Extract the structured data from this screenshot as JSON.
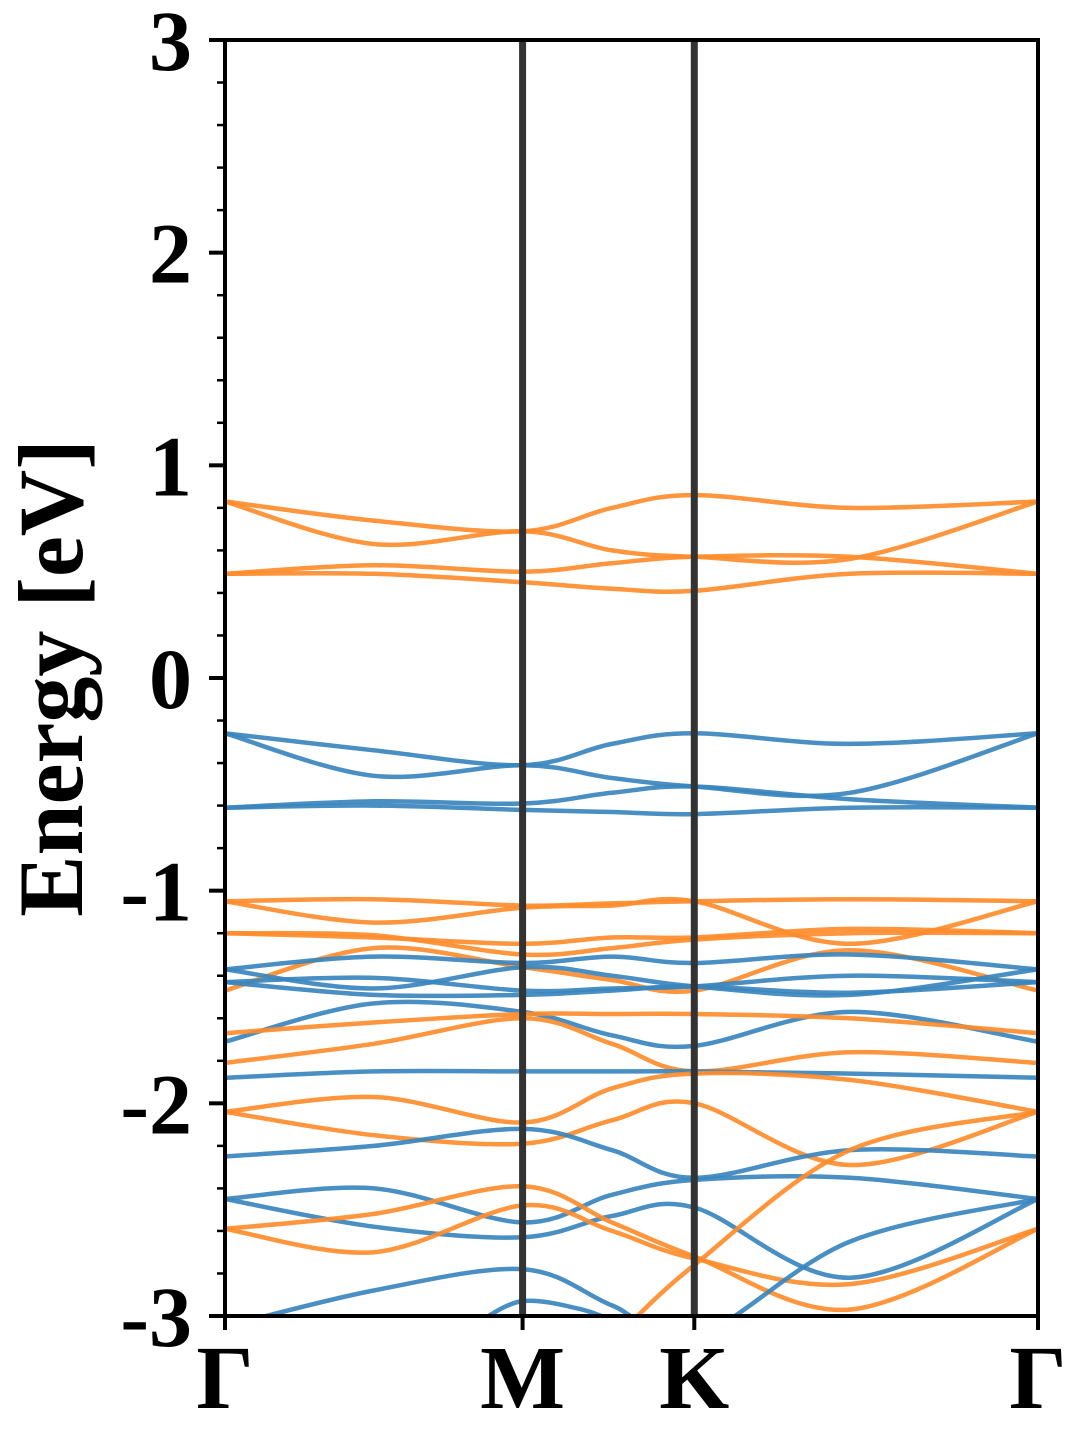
{
  "chart_data": {
    "type": "line",
    "ylabel": "Energy [eV]",
    "xlabel": "",
    "ylim": [
      -3,
      3
    ],
    "y_ticks": [
      "3",
      "2",
      "1",
      "0",
      "-1",
      "-2",
      "-3"
    ],
    "y_tick_values": [
      3,
      2,
      1,
      0,
      -1,
      -2,
      -3
    ],
    "y_minor_step": 0.2,
    "kpath": {
      "labels": [
        "Γ",
        "M",
        "K",
        "Γ"
      ],
      "positions": [
        0,
        1,
        1.577,
        2.732
      ]
    },
    "grid": false,
    "legend": "none",
    "colors": {
      "blue": "#3a86be",
      "orange": "#ff8c2b",
      "frame": "#000000",
      "divider": "#333333"
    },
    "series": [
      {
        "color": "orange",
        "x": [
          0,
          0.5,
          1,
          1.3,
          1.577,
          2.1,
          2.732
        ],
        "y": [
          0.83,
          0.74,
          0.69,
          0.8,
          0.86,
          0.8,
          0.83
        ]
      },
      {
        "color": "orange",
        "x": [
          0,
          0.5,
          1,
          1.3,
          1.577,
          2.1,
          2.732
        ],
        "y": [
          0.83,
          0.63,
          0.69,
          0.6,
          0.57,
          0.56,
          0.83
        ]
      },
      {
        "color": "orange",
        "x": [
          0,
          0.5,
          1,
          1.3,
          1.577,
          2.1,
          2.732
        ],
        "y": [
          0.49,
          0.53,
          0.5,
          0.54,
          0.57,
          0.57,
          0.49
        ]
      },
      {
        "color": "orange",
        "x": [
          0,
          0.5,
          1,
          1.3,
          1.577,
          2.1,
          2.732
        ],
        "y": [
          0.49,
          0.49,
          0.45,
          0.42,
          0.41,
          0.49,
          0.49
        ]
      },
      {
        "color": "blue",
        "x": [
          0,
          0.5,
          1,
          1.3,
          1.577,
          2.1,
          2.732
        ],
        "y": [
          -0.26,
          -0.34,
          -0.41,
          -0.31,
          -0.26,
          -0.31,
          -0.26
        ]
      },
      {
        "color": "blue",
        "x": [
          0,
          0.5,
          1,
          1.3,
          1.577,
          2.1,
          2.732
        ],
        "y": [
          -0.26,
          -0.46,
          -0.41,
          -0.47,
          -0.51,
          -0.54,
          -0.26
        ]
      },
      {
        "color": "blue",
        "x": [
          0,
          0.5,
          1,
          1.3,
          1.577,
          2.1,
          2.732
        ],
        "y": [
          -0.61,
          -0.58,
          -0.59,
          -0.54,
          -0.51,
          -0.57,
          -0.61
        ]
      },
      {
        "color": "blue",
        "x": [
          0,
          0.5,
          1,
          1.3,
          1.577,
          2.1,
          2.732
        ],
        "y": [
          -0.61,
          -0.6,
          -0.62,
          -0.63,
          -0.64,
          -0.61,
          -0.61
        ]
      },
      {
        "color": "orange",
        "x": [
          0,
          0.5,
          1,
          1.3,
          1.577,
          2.1,
          2.732
        ],
        "y": [
          -1.05,
          -1.04,
          -1.07,
          -1.06,
          -1.05,
          -1.04,
          -1.05
        ]
      },
      {
        "color": "orange",
        "x": [
          0,
          0.5,
          1,
          1.3,
          1.577,
          2.1,
          2.732
        ],
        "y": [
          -1.05,
          -1.15,
          -1.08,
          -1.07,
          -1.05,
          -1.25,
          -1.05
        ]
      },
      {
        "color": "orange",
        "x": [
          0,
          0.5,
          1,
          1.3,
          1.577,
          2.1,
          2.732
        ],
        "y": [
          -1.2,
          -1.22,
          -1.25,
          -1.22,
          -1.22,
          -1.18,
          -1.2
        ]
      },
      {
        "color": "orange",
        "x": [
          0,
          0.5,
          1,
          1.3,
          1.577,
          2.1,
          2.732
        ],
        "y": [
          -1.2,
          -1.21,
          -1.3,
          -1.27,
          -1.23,
          -1.2,
          -1.2
        ]
      },
      {
        "color": "orange",
        "x": [
          0,
          0.5,
          1,
          1.3,
          1.577,
          2.1,
          2.732
        ],
        "y": [
          -1.47,
          -1.27,
          -1.36,
          -1.42,
          -1.47,
          -1.28,
          -1.47
        ]
      },
      {
        "color": "blue",
        "x": [
          0,
          0.5,
          1,
          1.3,
          1.577,
          2.1,
          2.732
        ],
        "y": [
          -1.37,
          -1.31,
          -1.34,
          -1.31,
          -1.34,
          -1.3,
          -1.37
        ]
      },
      {
        "color": "blue",
        "x": [
          0,
          0.5,
          1,
          1.3,
          1.577,
          2.1,
          2.732
        ],
        "y": [
          -1.37,
          -1.46,
          -1.36,
          -1.4,
          -1.45,
          -1.49,
          -1.37
        ]
      },
      {
        "color": "blue",
        "x": [
          0,
          0.5,
          1,
          1.3,
          1.577,
          2.1,
          2.732
        ],
        "y": [
          -1.43,
          -1.41,
          -1.47,
          -1.46,
          -1.45,
          -1.4,
          -1.43
        ]
      },
      {
        "color": "blue",
        "x": [
          0,
          0.5,
          1,
          1.3,
          1.577,
          2.1,
          2.732
        ],
        "y": [
          -1.43,
          -1.49,
          -1.49,
          -1.47,
          -1.45,
          -1.48,
          -1.43
        ]
      },
      {
        "color": "blue",
        "x": [
          0,
          0.5,
          1,
          1.3,
          1.577,
          2.1,
          2.732
        ],
        "y": [
          -1.71,
          -1.53,
          -1.57,
          -1.68,
          -1.73,
          -1.57,
          -1.71
        ]
      },
      {
        "color": "orange",
        "x": [
          0,
          0.5,
          1,
          1.3,
          1.577,
          2.1,
          2.732
        ],
        "y": [
          -1.67,
          -1.62,
          -1.58,
          -1.58,
          -1.58,
          -1.6,
          -1.67
        ]
      },
      {
        "color": "orange",
        "x": [
          0,
          0.5,
          1,
          1.3,
          1.577,
          2.1,
          2.732
        ],
        "y": [
          -1.81,
          -1.72,
          -1.6,
          -1.72,
          -1.85,
          -1.76,
          -1.81
        ]
      },
      {
        "color": "blue",
        "x": [
          0,
          0.5,
          1,
          1.3,
          1.577,
          2.1,
          2.732
        ],
        "y": [
          -1.88,
          -1.85,
          -1.85,
          -1.85,
          -1.85,
          -1.86,
          -1.88
        ]
      },
      {
        "color": "orange",
        "x": [
          0,
          0.5,
          1,
          1.3,
          1.577,
          2.1,
          2.732
        ],
        "y": [
          -2.04,
          -1.97,
          -2.09,
          -1.93,
          -1.86,
          -1.89,
          -2.04
        ]
      },
      {
        "color": "orange",
        "x": [
          0,
          0.5,
          1,
          1.3,
          1.577,
          2.1,
          2.732
        ],
        "y": [
          -2.04,
          -2.15,
          -2.19,
          -2.08,
          -2.0,
          -2.29,
          -2.04
        ]
      },
      {
        "color": "blue",
        "x": [
          0,
          0.5,
          1,
          1.3,
          1.577,
          2.1,
          2.732
        ],
        "y": [
          -2.25,
          -2.2,
          -2.12,
          -2.22,
          -2.35,
          -2.22,
          -2.25
        ]
      },
      {
        "color": "blue",
        "x": [
          0,
          0.5,
          1,
          1.3,
          1.577,
          2.1,
          2.732
        ],
        "y": [
          -2.45,
          -2.4,
          -2.56,
          -2.43,
          -2.36,
          -2.35,
          -2.45
        ]
      },
      {
        "color": "blue",
        "x": [
          0,
          0.5,
          1,
          1.3,
          1.577,
          2.1,
          2.732
        ],
        "y": [
          -2.45,
          -2.58,
          -2.63,
          -2.53,
          -2.49,
          -2.82,
          -2.45
        ]
      },
      {
        "color": "orange",
        "x": [
          0,
          0.5,
          1,
          1.3,
          1.577,
          2.1,
          2.732
        ],
        "y": [
          -2.59,
          -2.52,
          -2.39,
          -2.56,
          -2.72,
          -2.97,
          -2.59
        ]
      },
      {
        "color": "orange",
        "x": [
          0,
          0.5,
          1,
          1.3,
          1.577,
          2.1,
          2.732
        ],
        "y": [
          -2.59,
          -2.7,
          -2.48,
          -2.6,
          -2.73,
          -2.85,
          -2.59
        ]
      },
      {
        "color": "blue",
        "x": [
          0,
          0.5,
          1,
          1.3,
          1.577,
          2.1,
          2.732
        ],
        "y": [
          -3.05,
          -2.88,
          -2.78,
          -2.95,
          -3.1,
          -2.65,
          -2.45
        ]
      },
      {
        "color": "blue",
        "x": [
          0.85,
          1,
          1.2,
          1.35
        ],
        "y": [
          -3.03,
          -2.93,
          -2.97,
          -3.05
        ]
      },
      {
        "color": "orange",
        "x": [
          1.35,
          1.577,
          2.1,
          2.732
        ],
        "y": [
          -3.05,
          -2.76,
          -2.22,
          -2.04
        ]
      }
    ]
  }
}
